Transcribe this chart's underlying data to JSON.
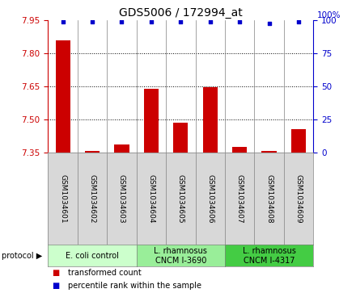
{
  "title": "GDS5006 / 172994_at",
  "samples": [
    "GSM1034601",
    "GSM1034602",
    "GSM1034603",
    "GSM1034604",
    "GSM1034605",
    "GSM1034606",
    "GSM1034607",
    "GSM1034608",
    "GSM1034609"
  ],
  "transformed_counts": [
    7.86,
    7.356,
    7.385,
    7.64,
    7.485,
    7.645,
    7.375,
    7.356,
    7.455
  ],
  "percentile_ranks": [
    99,
    99,
    99,
    99,
    99,
    99,
    99,
    98,
    99
  ],
  "ylim_left": [
    7.35,
    7.95
  ],
  "ylim_right": [
    0,
    100
  ],
  "yticks_left": [
    7.35,
    7.5,
    7.65,
    7.8,
    7.95
  ],
  "yticks_right": [
    0,
    25,
    50,
    75,
    100
  ],
  "bar_color": "#cc0000",
  "dot_color": "#0000cc",
  "bar_width": 0.5,
  "protocol_groups": [
    {
      "label": "E. coli control",
      "start": 0,
      "end": 3,
      "color": "#ccffcc"
    },
    {
      "label": "L. rhamnosus\nCNCM I-3690",
      "start": 3,
      "end": 6,
      "color": "#99ee99"
    },
    {
      "label": "L. rhamnosus\nCNCM I-4317",
      "start": 6,
      "end": 9,
      "color": "#44cc44"
    }
  ],
  "title_fontsize": 10,
  "tick_fontsize": 7.5,
  "sample_fontsize": 6.5,
  "protocol_fontsize": 7,
  "legend_fontsize": 7
}
